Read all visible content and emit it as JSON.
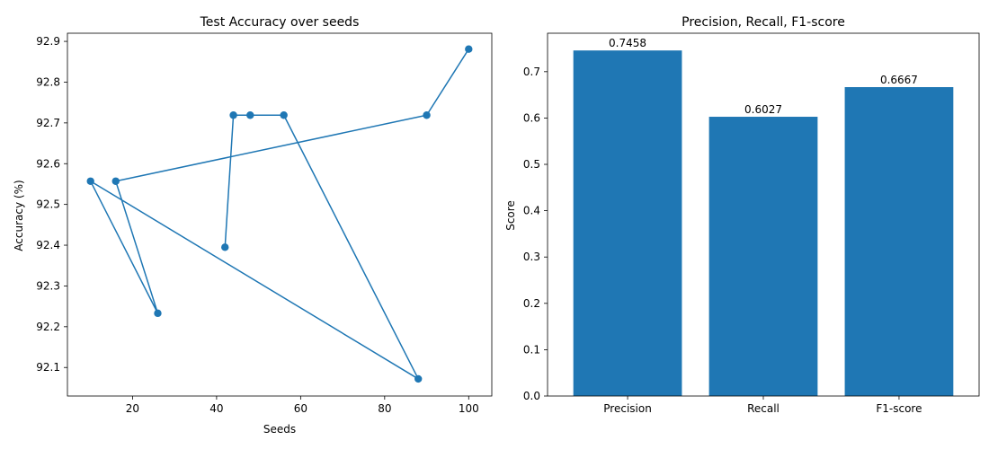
{
  "chart_data": [
    {
      "type": "line",
      "title": "Test Accuracy over seeds",
      "xlabel": "Seeds",
      "ylabel": "Accuracy (%)",
      "xlim": [
        4.5,
        105.5
      ],
      "ylim": [
        92.03,
        92.92
      ],
      "xticks": [
        20,
        40,
        60,
        80,
        100
      ],
      "yticks": [
        92.1,
        92.2,
        92.3,
        92.4,
        92.5,
        92.6,
        92.7,
        92.8,
        92.9
      ],
      "color": "#1f77b4",
      "marker": "circle",
      "grid": false,
      "series": [
        {
          "x": [
            42,
            44,
            48,
            56,
            88,
            10,
            26,
            16,
            90,
            100
          ],
          "y": [
            92.395,
            92.719,
            92.719,
            92.719,
            92.072,
            92.557,
            92.233,
            92.557,
            92.719,
            92.881
          ]
        }
      ]
    },
    {
      "type": "bar",
      "title": "Precision, Recall, F1-score",
      "xlabel": "",
      "ylabel": "Score",
      "ylim": [
        0,
        0.783
      ],
      "yticks": [
        0.0,
        0.1,
        0.2,
        0.3,
        0.4,
        0.5,
        0.6,
        0.7
      ],
      "color": "#1f77b4",
      "grid": false,
      "categories": [
        "Precision",
        "Recall",
        "F1-score"
      ],
      "values": [
        0.7458,
        0.6027,
        0.6667
      ],
      "value_labels": [
        "0.7458",
        "0.6027",
        "0.6667"
      ]
    }
  ]
}
